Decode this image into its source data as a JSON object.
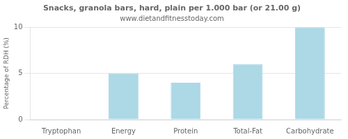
{
  "chart_data": {
    "type": "bar",
    "title": "Snacks, granola bars, hard, plain per 1.000 bar (or 21.00 g)",
    "subtitle": "www.dietandfitnesstoday.com",
    "categories": [
      "Tryptophan",
      "Energy",
      "Protein",
      "Total-Fat",
      "Carbohydrate"
    ],
    "values": [
      0,
      5,
      4,
      6,
      10
    ],
    "color": "#add8e6",
    "ylabel": "Percentage of RDH (%)",
    "ylim": [
      0,
      10
    ],
    "yticks": [
      0,
      5,
      10
    ],
    "grid": true
  }
}
